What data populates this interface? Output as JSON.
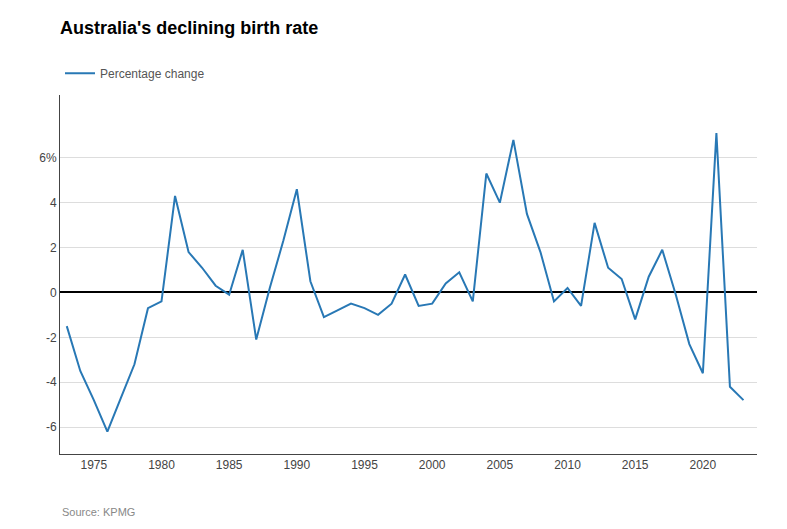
{
  "chart_data": {
    "type": "line",
    "title": "Australia's declining birth rate",
    "annotations": [
      "Source: KPMG"
    ],
    "x": [
      1973,
      1974,
      1975,
      1976,
      1977,
      1978,
      1979,
      1980,
      1981,
      1982,
      1983,
      1984,
      1985,
      1986,
      1987,
      1988,
      1989,
      1990,
      1991,
      1992,
      1993,
      1994,
      1995,
      1996,
      1997,
      1998,
      1999,
      2000,
      2001,
      2002,
      2003,
      2004,
      2005,
      2006,
      2007,
      2008,
      2009,
      2010,
      2011,
      2012,
      2013,
      2014,
      2015,
      2016,
      2017,
      2018,
      2019,
      2020,
      2021,
      2022,
      2023
    ],
    "series": [
      {
        "name": "Percentage change",
        "color": "#2878b5",
        "values": [
          -1.5,
          -3.5,
          -4.8,
          -6.2,
          -4.7,
          -3.2,
          -0.7,
          -0.4,
          4.3,
          1.8,
          1.1,
          0.3,
          -0.1,
          1.9,
          -2.1,
          0.2,
          2.3,
          4.6,
          0.5,
          -1.1,
          -0.8,
          -0.5,
          -0.7,
          -1.0,
          -0.5,
          0.8,
          -0.6,
          -0.5,
          0.4,
          0.9,
          -0.4,
          5.3,
          4.0,
          6.8,
          3.5,
          1.8,
          -0.4,
          0.2,
          -0.6,
          3.1,
          1.1,
          0.6,
          -1.2,
          0.7,
          1.9,
          -0.1,
          -2.3,
          -3.6,
          7.1,
          -4.2,
          -4.8
        ]
      }
    ],
    "xlim": [
      1972.5,
      2024.0
    ],
    "xticks": [
      1975,
      1980,
      1985,
      1990,
      1995,
      2000,
      2005,
      2010,
      2015,
      2020
    ],
    "ylim": [
      -7.2,
      8.8
    ],
    "yticks": [
      -6,
      -4,
      -2,
      0,
      2,
      4,
      {
        "value": 6,
        "label": "6%"
      }
    ],
    "grid": "y",
    "legend": "upper left"
  }
}
